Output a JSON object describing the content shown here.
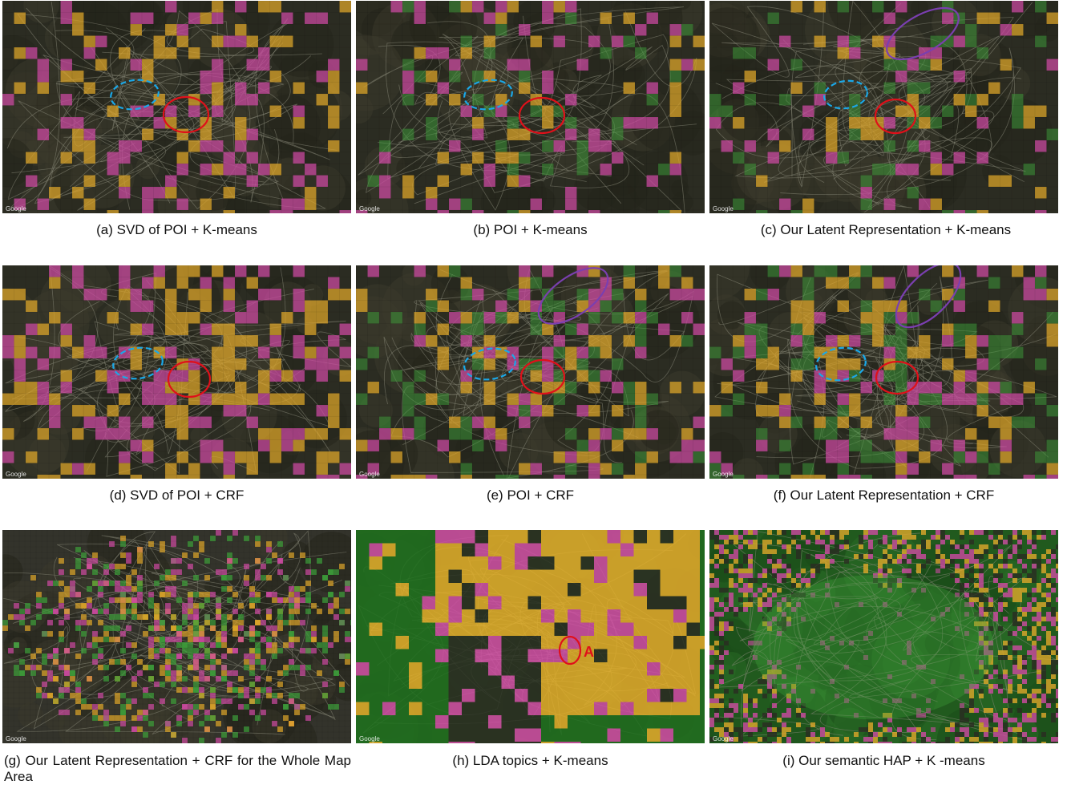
{
  "colors": {
    "orange": "#e0a72a",
    "pink": "#cf4aa3",
    "green": "#3da03a",
    "dark_green": "#1f5a1d",
    "circle_red": "#e0101a",
    "circle_blue": "#1aa8e8",
    "circle_purple": "#7a3fb0"
  },
  "panels": [
    {
      "id": "a",
      "caption": "(a) SVD of POI + K-means",
      "watermark": "Google",
      "style": "satellite",
      "palette": [
        "orange",
        "pink"
      ],
      "marks": [
        "red",
        "blue"
      ]
    },
    {
      "id": "b",
      "caption": "(b) POI + K-means",
      "watermark": "Google",
      "style": "satellite",
      "palette": [
        "orange",
        "pink",
        "green"
      ],
      "marks": [
        "red",
        "blue"
      ]
    },
    {
      "id": "c",
      "caption": "(c) Our Latent Representation + K-means",
      "watermark": "Google",
      "style": "satellite",
      "palette": [
        "orange",
        "pink",
        "green"
      ],
      "marks": [
        "red",
        "blue",
        "purple"
      ]
    },
    {
      "id": "d",
      "caption": "(d) SVD of POI + CRF",
      "watermark": "Google",
      "style": "satellite",
      "palette": [
        "orange",
        "pink"
      ],
      "marks": [
        "red",
        "blue"
      ]
    },
    {
      "id": "e",
      "caption": "(e) POI + CRF",
      "watermark": "Google",
      "style": "satellite",
      "palette": [
        "orange",
        "pink",
        "green"
      ],
      "marks": [
        "red",
        "blue",
        "purple"
      ]
    },
    {
      "id": "f",
      "caption": "(f) Our Latent Representation + CRF",
      "watermark": "Google",
      "style": "satellite",
      "palette": [
        "orange",
        "pink",
        "green"
      ],
      "marks": [
        "red",
        "blue",
        "purple"
      ]
    },
    {
      "id": "g",
      "caption": "(g) Our Latent Representation + CRF for the Whole Map Area",
      "watermark": "Google",
      "style": "wide",
      "palette": [
        "orange",
        "pink",
        "green"
      ],
      "marks": []
    },
    {
      "id": "h",
      "caption": "(h) LDA topics + K-means",
      "watermark": "Google",
      "style": "lda",
      "palette": [
        "orange",
        "pink",
        "green"
      ],
      "marks": [
        "red"
      ],
      "marker_label": "A"
    },
    {
      "id": "i",
      "caption": "(i) Our semantic HAP + K -means",
      "watermark": "Google",
      "style": "hap",
      "palette": [
        "orange",
        "pink",
        "green"
      ],
      "marks": []
    }
  ]
}
